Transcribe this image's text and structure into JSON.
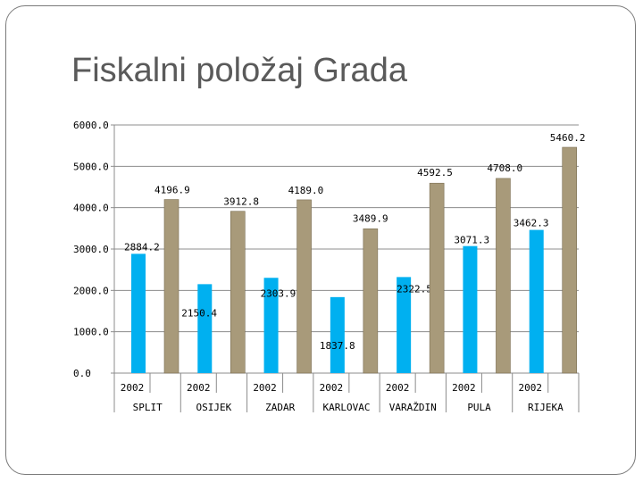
{
  "slide": {
    "title": "Fiskalni položaj Grada"
  },
  "chart_data": {
    "type": "bar",
    "ylim": [
      0,
      6000
    ],
    "y_ticks": [
      "0.0",
      "1000.0",
      "2000.0",
      "3000.0",
      "4000.0",
      "5000.0",
      "6000.0"
    ],
    "grid": true,
    "categories": [
      "SPLIT",
      "OSIJEK",
      "ZADAR",
      "KARLOVAC",
      "VARAŽDIN",
      "PULA",
      "RIJEKA"
    ],
    "years": [
      "2002",
      "2002",
      "2002",
      "2002",
      "2002",
      "2002",
      "2002"
    ],
    "series": [
      {
        "color": "#00b0f0",
        "values": [
          2884.2,
          2150.4,
          2303.9,
          1837.8,
          2322.5,
          3071.3,
          3462.3
        ],
        "labels": [
          "2884.2",
          "2150.4",
          "2303.9",
          "1837.8",
          "2322.5",
          "3071.3",
          "3462.3"
        ]
      },
      {
        "color": "#a89a7a",
        "values": [
          4196.9,
          3912.8,
          4189.0,
          3489.9,
          4592.5,
          4708.0,
          5460.2
        ],
        "labels": [
          "4196.9",
          "3912.8",
          "4189.0",
          "3489.9",
          "4592.5",
          "4708.0",
          "5460.2"
        ]
      }
    ]
  }
}
